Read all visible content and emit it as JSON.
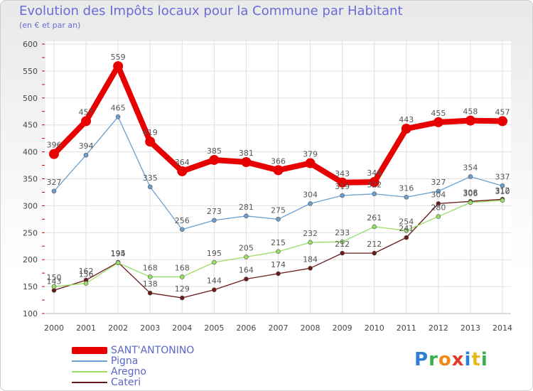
{
  "header": {
    "title": "Evolution des Impôts locaux pour la Commune par Habitant",
    "subtitle": "(en € et par an)"
  },
  "logo": {
    "text": "Proxiti"
  },
  "chart_data": {
    "type": "line",
    "title": "Evolution des Impôts locaux pour la Commune par Habitant",
    "subtitle": "(en € et par an)",
    "x": [
      "2000",
      "2001",
      "2002",
      "2003",
      "2004",
      "2005",
      "2006",
      "2007",
      "2008",
      "2009",
      "2010",
      "2011",
      "2012",
      "2013",
      "2014"
    ],
    "ylim": [
      100,
      600
    ],
    "yticks": [
      100,
      150,
      200,
      250,
      300,
      350,
      400,
      450,
      500,
      550,
      600
    ],
    "grid": true,
    "legend_position": "bottom-left",
    "series": [
      {
        "name": "SANT'ANTONINO",
        "color": "#e60000",
        "values": [
          396,
          457,
          559,
          419,
          364,
          385,
          381,
          366,
          379,
          343,
          344,
          443,
          455,
          458,
          457
        ]
      },
      {
        "name": "Pigna",
        "color": "#6a9fcf",
        "values": [
          327,
          394,
          465,
          335,
          256,
          273,
          281,
          275,
          304,
          319,
          322,
          316,
          327,
          354,
          337
        ]
      },
      {
        "name": "Aregno",
        "color": "#99dd66",
        "values": [
          150,
          156,
          194,
          168,
          168,
          195,
          205,
          215,
          232,
          233,
          261,
          254,
          280,
          306,
          310
        ]
      },
      {
        "name": "Cateri",
        "color": "#6b1a1a",
        "values": [
          143,
          162,
          195,
          138,
          129,
          144,
          164,
          174,
          184,
          212,
          212,
          241,
          304,
          308,
          312
        ]
      }
    ]
  }
}
